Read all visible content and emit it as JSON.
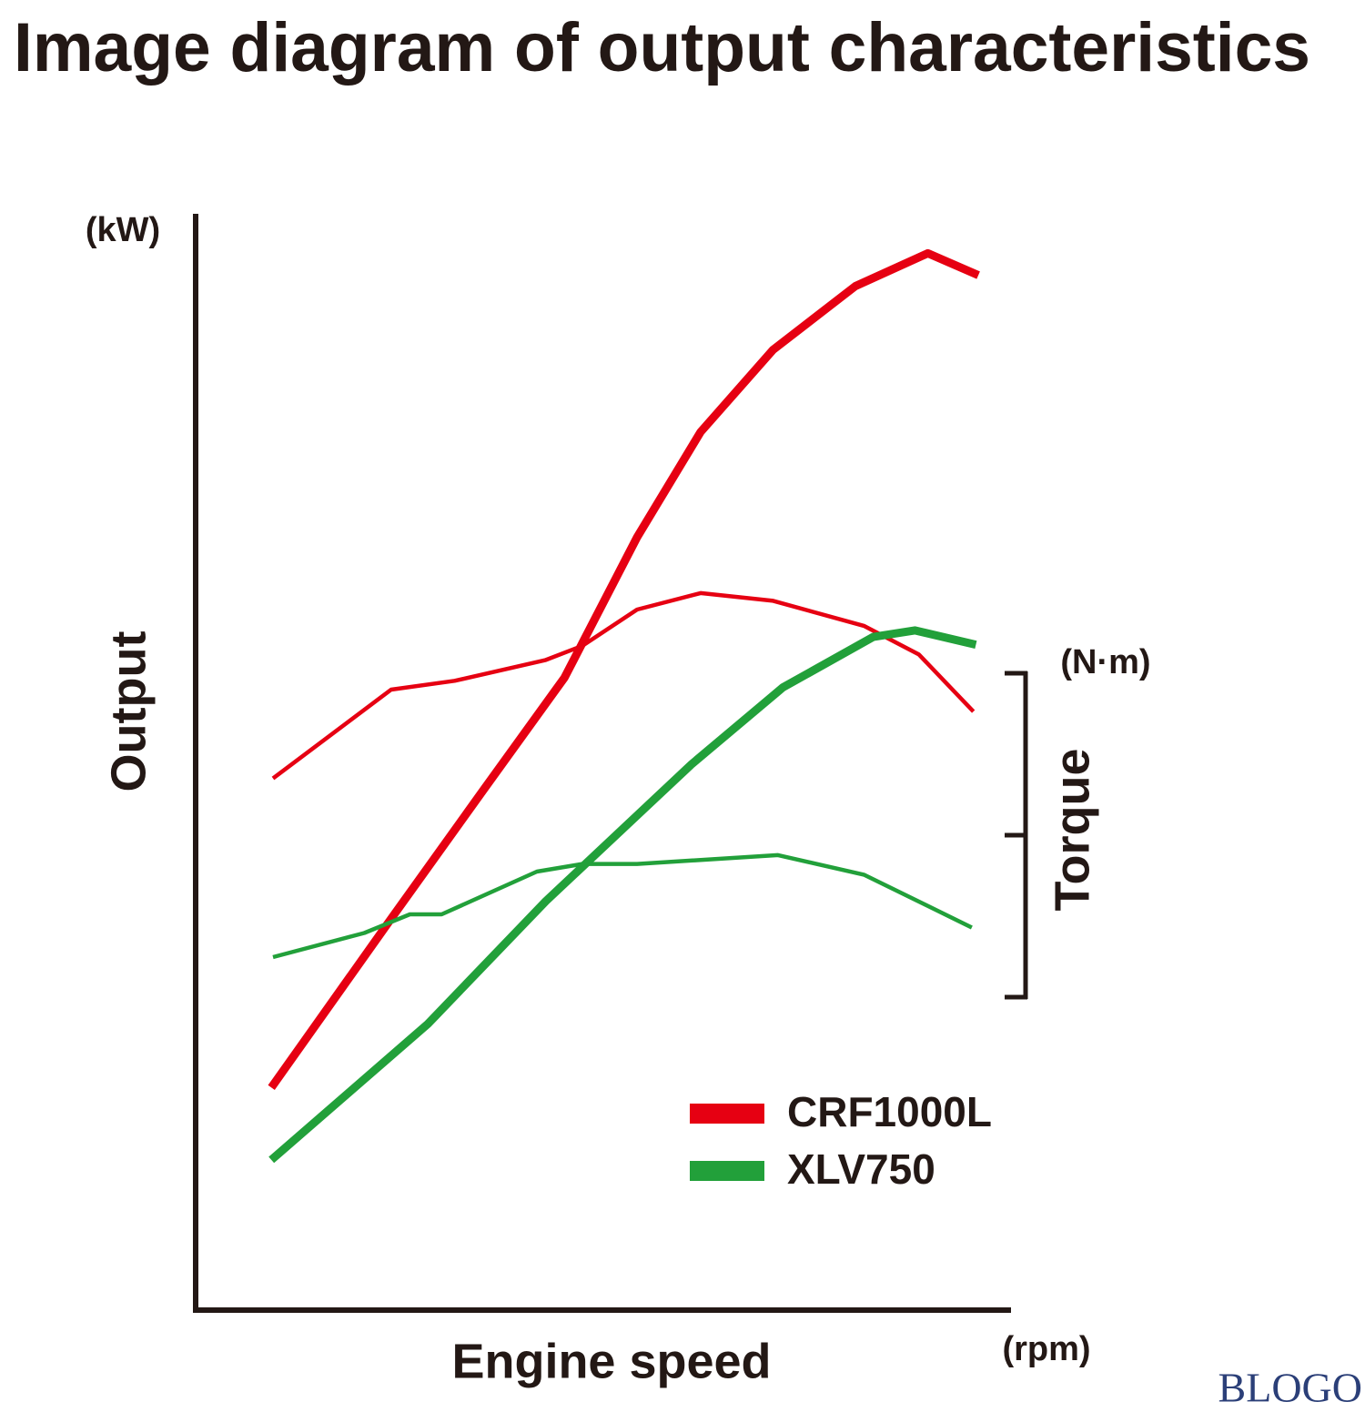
{
  "chart_data": {
    "type": "line",
    "title": "Image diagram of output characteristics",
    "y_label": "Output",
    "y_unit": "(kW)",
    "y2_label": "Torque",
    "y2_unit": "(N·m)",
    "x_label": "Engine speed",
    "x_unit": "(rpm)",
    "xlim": [
      0,
      100
    ],
    "ylim": [
      0,
      100
    ],
    "y2lim": [
      0,
      100
    ],
    "series": [
      {
        "name": "CRF1000L",
        "color": "#e60012",
        "lines": [
          {
            "x": [
              9.3,
              24.0,
              35.2,
              45.3,
              54.2,
              62.0,
              70.9,
              81.0,
              89.9,
              96.1
            ],
            "values": [
              20.3,
              35.7,
              47.3,
              57.7,
              70.5,
              80.1,
              87.6,
              93.4,
              96.4,
              94.4
            ]
          },
          {
            "axis": "y2",
            "x": [
              9.5,
              24.0,
              31.8,
              43.0,
              47.5,
              54.2,
              62.0,
              70.9,
              82.1,
              88.8,
              95.5
            ],
            "values": [
              48.5,
              56.6,
              57.4,
              59.3,
              60.6,
              63.9,
              65.4,
              64.7,
              62.4,
              59.8,
              54.6
            ]
          }
        ]
      },
      {
        "name": "XLV750",
        "color": "#22a03a",
        "lines": [
          {
            "x": [
              9.3,
              28.5,
              43.0,
              60.9,
              72.1,
              83.2,
              88.3,
              95.8
            ],
            "values": [
              13.7,
              26.1,
              37.3,
              49.8,
              56.8,
              61.4,
              62.0,
              60.7
            ]
          },
          {
            "axis": "y2",
            "x": [
              9.5,
              20.7,
              26.3,
              30.2,
              41.9,
              47.5,
              54.2,
              71.5,
              82.1,
              95.3
            ],
            "values": [
              32.2,
              34.4,
              36.1,
              36.1,
              40.0,
              40.7,
              40.7,
              41.5,
              39.7,
              34.9
            ]
          }
        ]
      }
    ],
    "watermark": "BLOGO"
  }
}
